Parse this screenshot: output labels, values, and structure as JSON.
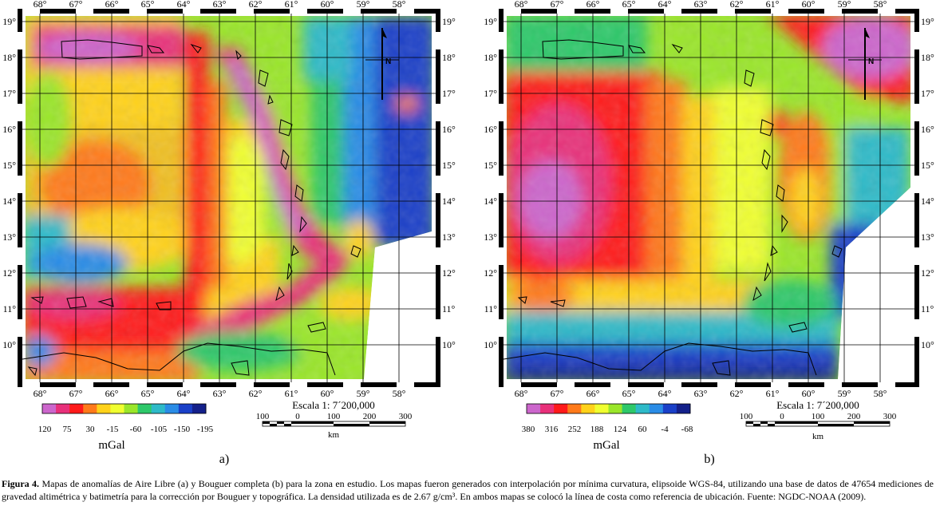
{
  "maps": [
    {
      "id": "a",
      "panel_label": "a)",
      "lon_labels": [
        "68°",
        "67°",
        "66°",
        "65°",
        "64°",
        "63°",
        "62°",
        "61°",
        "60°",
        "59°",
        "58°"
      ],
      "lat_labels": [
        "19°",
        "18°",
        "17°",
        "16°",
        "15°",
        "14°",
        "13°",
        "12°",
        "11°",
        "10°"
      ],
      "colorbar": {
        "ticks": [
          "120",
          "75",
          "30",
          "-15",
          "-60",
          "-105",
          "-150",
          "-195"
        ],
        "unit": "mGal",
        "colors": [
          "#cc66cc",
          "#e8307a",
          "#ff1a1a",
          "#ff7a1a",
          "#ffd21a",
          "#f0ff30",
          "#9ae62a",
          "#2ec86a",
          "#2ebac8",
          "#2a8ce6",
          "#1a40c8",
          "#14208a"
        ]
      },
      "scale": {
        "title": "Escala 1: 7´200,000",
        "ticks": [
          "100",
          "0",
          "100",
          "200",
          "300"
        ],
        "unit": "km"
      }
    },
    {
      "id": "b",
      "panel_label": "b)",
      "lon_labels": [
        "68°",
        "67°",
        "66°",
        "65°",
        "64°",
        "63°",
        "62°",
        "61°",
        "60°",
        "59°",
        "58°"
      ],
      "lat_labels": [
        "19°",
        "18°",
        "17°",
        "16°",
        "15°",
        "14°",
        "13°",
        "12°",
        "11°",
        "10°"
      ],
      "colorbar": {
        "ticks": [
          "380",
          "316",
          "252",
          "188",
          "124",
          "60",
          "-4",
          "-68"
        ],
        "unit": "mGal",
        "colors": [
          "#cc66cc",
          "#e8307a",
          "#ff1a1a",
          "#ff7a1a",
          "#ffd21a",
          "#f0ff30",
          "#9ae62a",
          "#2ec86a",
          "#2ebac8",
          "#2a8ce6",
          "#1a40c8",
          "#14208a"
        ]
      },
      "scale": {
        "title": "Escala 1: 7´200,000",
        "ticks": [
          "100",
          "0",
          "100",
          "200",
          "300"
        ],
        "unit": "km"
      }
    }
  ],
  "caption": {
    "figure_label": "Figura 4.",
    "text": " Mapas de anomalías de Aire Libre (a) y Bouguer completa (b) para la zona en estudio. Los mapas fueron generados con interpolación por mínima curvatura, elipsoide WGS-84, utilizando una base de datos de 47654 mediciones de gravedad altimétrica y batimetría para la corrección por Bouguer y topográfica. La densidad utilizada es de 2.67 g/cm³. En ambos mapas se colocó la línea de costa como referencia de ubicación. Fuente: NGDC-NOAA (2009)."
  }
}
